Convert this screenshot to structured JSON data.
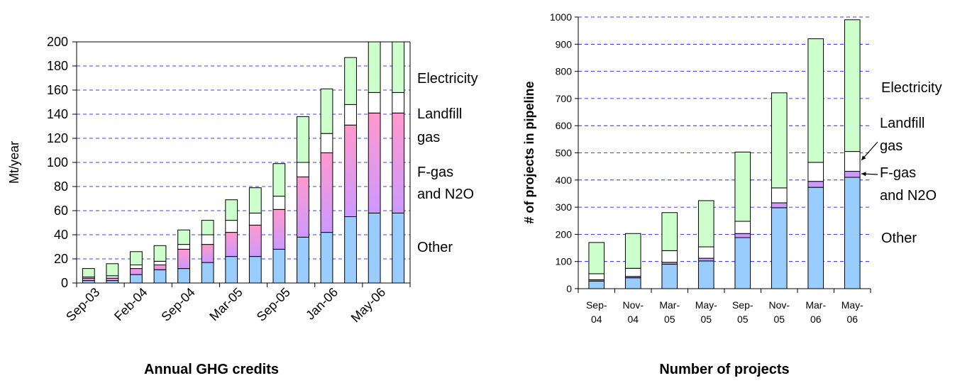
{
  "chart_data": [
    {
      "type": "bar",
      "stacked": true,
      "title": "Annual GHG credits",
      "xlabel": "",
      "ylabel": "Mt/year",
      "ylim": [
        0,
        200
      ],
      "yticks": [
        0,
        20,
        40,
        60,
        80,
        100,
        120,
        140,
        160,
        180,
        200
      ],
      "grid": true,
      "x_tick_labels": [
        "Sep-03",
        "Feb-04",
        "Sep-04",
        "Mar-05",
        "Sep-05",
        "Jan-06",
        "May-06"
      ],
      "categories": [
        "b1",
        "b2",
        "b3",
        "b4",
        "b5",
        "b6",
        "b7",
        "b8",
        "b9",
        "b10",
        "b11",
        "b12",
        "b13",
        "b14"
      ],
      "series": [
        {
          "name": "Other",
          "values": [
            2,
            2,
            7,
            11,
            12,
            17,
            22,
            22,
            28,
            38,
            42,
            55,
            58,
            58
          ],
          "color": "#99ccff"
        },
        {
          "name": "F-gas and N2O",
          "values": [
            2,
            2,
            5,
            4,
            16,
            15,
            20,
            26,
            33,
            50,
            66,
            76,
            83,
            83
          ],
          "color": "#ff99cc"
        },
        {
          "name": "Landfill gas",
          "values": [
            1,
            2,
            3,
            3,
            4,
            8,
            10,
            10,
            11,
            12,
            16,
            17,
            17,
            17
          ],
          "color": "#ffffff"
        },
        {
          "name": "Electricity",
          "values": [
            7,
            10,
            11,
            13,
            12,
            12,
            17,
            21,
            27,
            38,
            37,
            39,
            42,
            42
          ],
          "color": "#ccffcc"
        }
      ],
      "legend_labels": [
        "Electricity",
        "Landfill",
        "gas",
        "F-gas",
        "and N2O",
        "Other"
      ]
    },
    {
      "type": "bar",
      "stacked": true,
      "title": "Number of projects",
      "xlabel": "",
      "ylabel": "# of projects in pipeline",
      "ylim": [
        0,
        1000
      ],
      "yticks": [
        0,
        100,
        200,
        300,
        400,
        500,
        600,
        700,
        800,
        900,
        1000
      ],
      "grid": true,
      "categories": [
        [
          "Sep-",
          "04"
        ],
        [
          "Nov-",
          "04"
        ],
        [
          "Mar-",
          "05"
        ],
        [
          "May-",
          "05"
        ],
        [
          "Sep-",
          "05"
        ],
        [
          "Nov-",
          "05"
        ],
        [
          "Mar-",
          "06"
        ],
        [
          "May-",
          "06"
        ]
      ],
      "series": [
        {
          "name": "Other",
          "values": [
            28,
            40,
            90,
            102,
            188,
            298,
            373,
            410
          ],
          "color": "#99ccff"
        },
        {
          "name": "F-gas and N2O",
          "values": [
            5,
            5,
            7,
            10,
            15,
            18,
            22,
            22
          ],
          "color": "#cc99ff"
        },
        {
          "name": "Landfill gas",
          "values": [
            22,
            30,
            43,
            42,
            45,
            55,
            70,
            73
          ],
          "color": "#ffffff"
        },
        {
          "name": "Electricity",
          "values": [
            115,
            128,
            140,
            170,
            255,
            350,
            455,
            485
          ],
          "color": "#ccffcc"
        }
      ],
      "legend_labels": [
        "Electricity",
        "Landfill",
        "gas",
        "F-gas",
        "and N2O",
        "Other"
      ]
    }
  ]
}
